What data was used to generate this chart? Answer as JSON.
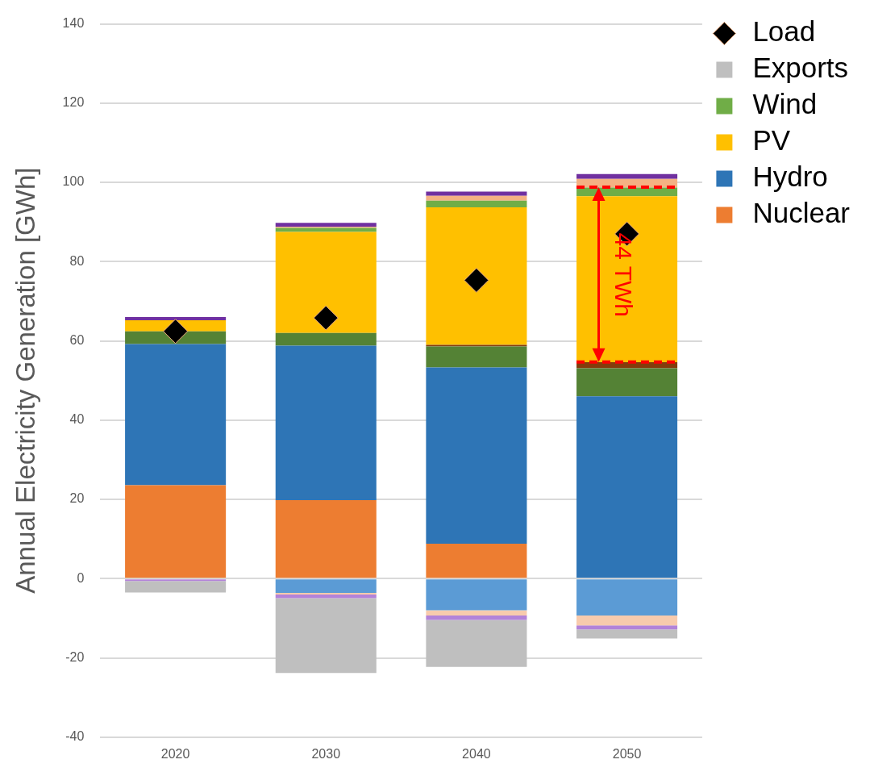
{
  "chart_data": {
    "type": "bar",
    "stacked": true,
    "ylabel": "Annual Electricity Generation [GWh]",
    "categories": [
      "2020",
      "2030",
      "2040",
      "2050"
    ],
    "ylim": [
      -40,
      140
    ],
    "yticks": [
      -40,
      -20,
      0,
      20,
      40,
      60,
      80,
      100,
      120,
      140
    ],
    "grid": "y",
    "legend": "top right",
    "series": [
      {
        "name": "Nuclear",
        "color": "#ed7d31",
        "values": [
          23.6,
          19.8,
          8.8,
          0
        ]
      },
      {
        "name": "Hydro",
        "color": "#2e75b6",
        "values": [
          35.6,
          39.0,
          44.5,
          46.0
        ]
      },
      {
        "color": "#548235",
        "values": [
          3.2,
          3.2,
          5.3,
          7.1
        ]
      },
      {
        "color": "#843c0c",
        "values": [
          0,
          0,
          0.4,
          1.5
        ]
      },
      {
        "name": "PV",
        "color": "#ffc000",
        "values": [
          2.8,
          25.5,
          34.7,
          41.9
        ]
      },
      {
        "name": "Wind",
        "color": "#70ad47",
        "values": [
          0,
          1.0,
          1.7,
          2.2
        ]
      },
      {
        "color": "#f4b183",
        "values": [
          0,
          0.3,
          1.2,
          2.2
        ]
      },
      {
        "color": "#7030a0",
        "values": [
          0.8,
          1.0,
          1.1,
          1.2
        ]
      },
      {
        "color": "#5b9bd5",
        "values": [
          0,
          -3.6,
          -8.0,
          -9.3
        ]
      },
      {
        "color": "#f8cbad",
        "values": [
          0,
          -0.4,
          -1.3,
          -2.5
        ]
      },
      {
        "color": "#b383d9",
        "values": [
          -0.6,
          -0.9,
          -1.1,
          -1.0
        ]
      },
      {
        "name": "Exports",
        "color": "#bfbfbf",
        "values": [
          -2.9,
          -18.9,
          -11.9,
          -2.3
        ]
      },
      {
        "name": "Load",
        "type": "scatter",
        "marker": "diamond",
        "color": "#000000",
        "values": [
          62.4,
          65.8,
          75.3,
          87.0
        ]
      }
    ],
    "annotations": [
      "44 TWh"
    ]
  }
}
